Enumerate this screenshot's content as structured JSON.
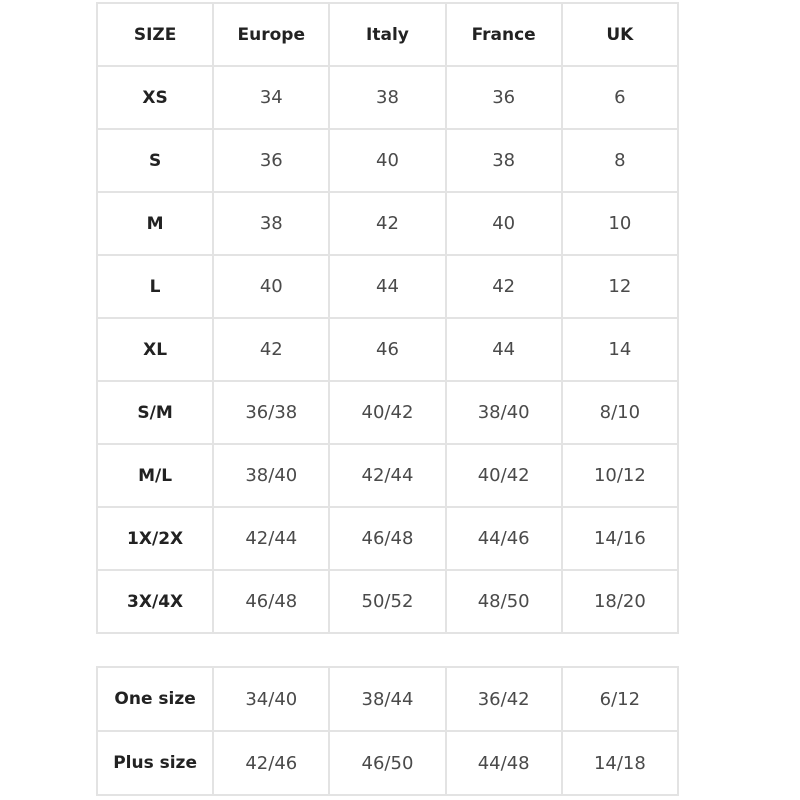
{
  "main_table": {
    "headers": [
      "SIZE",
      "Europe",
      "Italy",
      "France",
      "UK"
    ],
    "rows": [
      [
        "XS",
        "34",
        "38",
        "36",
        "6"
      ],
      [
        "S",
        "36",
        "40",
        "38",
        "8"
      ],
      [
        "M",
        "38",
        "42",
        "40",
        "10"
      ],
      [
        "L",
        "40",
        "44",
        "42",
        "12"
      ],
      [
        "XL",
        "42",
        "46",
        "44",
        "14"
      ],
      [
        "S/M",
        "36/38",
        "40/42",
        "38/40",
        "8/10"
      ],
      [
        "M/L",
        "38/40",
        "42/44",
        "40/42",
        "10/12"
      ],
      [
        "1X/2X",
        "42/44",
        "46/48",
        "44/46",
        "14/16"
      ],
      [
        "3X/4X",
        "46/48",
        "50/52",
        "48/50",
        "18/20"
      ]
    ]
  },
  "extra_table": {
    "rows": [
      [
        "One size",
        "34/40",
        "38/44",
        "36/42",
        "6/12"
      ],
      [
        "Plus size",
        "42/46",
        "46/50",
        "44/48",
        "14/18"
      ]
    ]
  }
}
